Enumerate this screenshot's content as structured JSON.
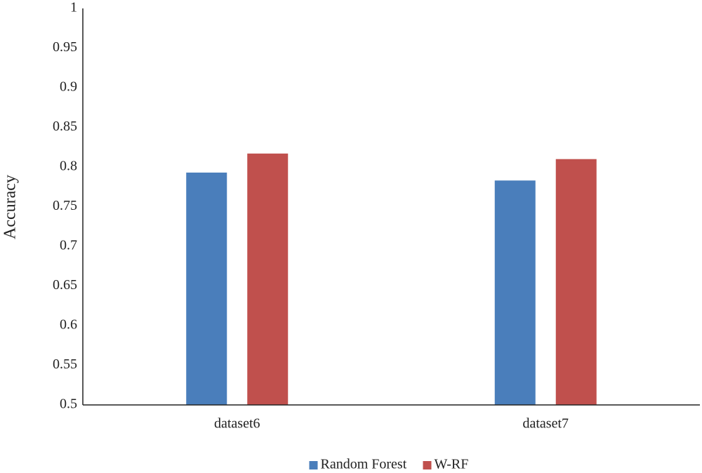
{
  "chart_data": {
    "type": "bar",
    "y_label": "Accuracy",
    "categories": [
      "dataset6",
      "dataset7"
    ],
    "series": [
      {
        "name": "Random Forest",
        "color": "#4a7ebb",
        "values": [
          0.793,
          0.783
        ]
      },
      {
        "name": "W-RF",
        "color": "#c0504d",
        "values": [
          0.817,
          0.81
        ]
      }
    ],
    "ylim": [
      0.5,
      1
    ],
    "yticks": [
      0.5,
      0.55,
      0.6,
      0.65,
      0.7,
      0.75,
      0.8,
      0.85,
      0.9,
      0.95,
      1
    ],
    "grid": false,
    "legend": "bottom"
  }
}
